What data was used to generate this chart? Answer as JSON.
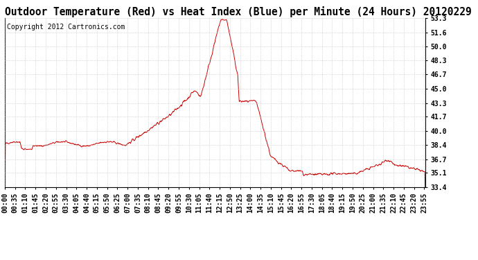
{
  "title": "Outdoor Temperature (Red) vs Heat Index (Blue) per Minute (24 Hours) 20120229",
  "copyright": "Copyright 2012 Cartronics.com",
  "yticks": [
    53.3,
    51.6,
    50.0,
    48.3,
    46.7,
    45.0,
    43.3,
    41.7,
    40.0,
    38.4,
    36.7,
    35.1,
    33.4
  ],
  "ymin": 33.4,
  "ymax": 53.3,
  "line_color": "#cc0000",
  "bg_color": "#ffffff",
  "grid_color": "#bbbbbb",
  "title_fontsize": 10.5,
  "copyright_fontsize": 7,
  "tick_fontsize": 7,
  "total_minutes": 1440,
  "xtick_start": 0,
  "xtick_step": 35
}
